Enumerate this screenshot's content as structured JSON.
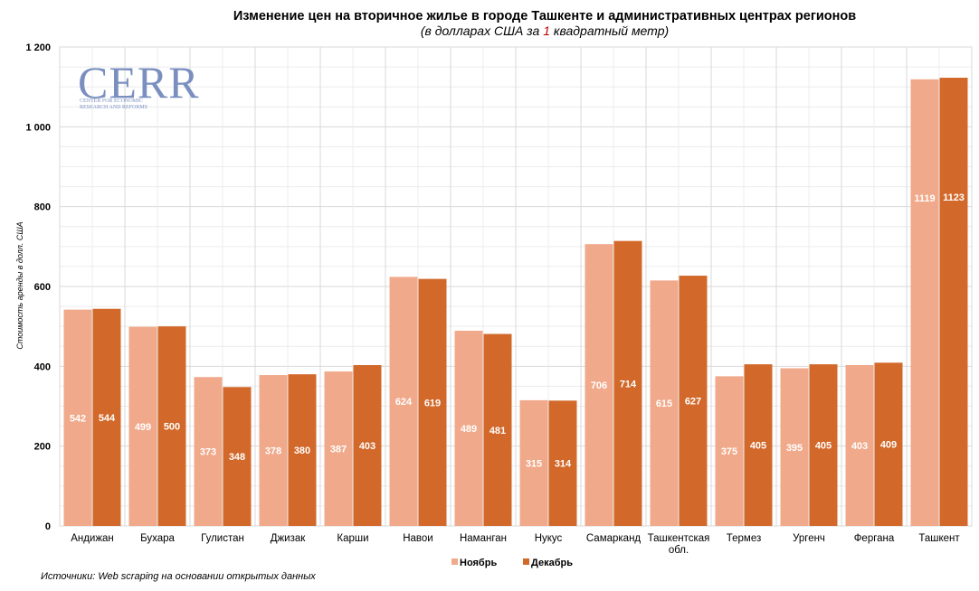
{
  "chart_data": {
    "type": "bar",
    "title": "Изменение цен на вторичное жилье в городе Ташкенте и административных центрах регионов",
    "subtitle": {
      "prefix": "(в долларах США за ",
      "highlight": "1",
      "suffix": " квадратный метр)"
    },
    "ylabel": "Стоимость аренды в долл. США",
    "xlabel": "",
    "ylim": [
      0,
      1200
    ],
    "yticks": [
      0,
      200,
      400,
      600,
      800,
      1000,
      1200
    ],
    "ytick_labels": [
      "0",
      "200",
      "400",
      "600",
      "800",
      "1 000",
      "1 200"
    ],
    "grid": true,
    "legend_position": "bottom-center",
    "categories": [
      [
        "Андижан"
      ],
      [
        "Бухара"
      ],
      [
        "Гулистан"
      ],
      [
        "Джизак"
      ],
      [
        "Карши"
      ],
      [
        "Навои"
      ],
      [
        "Наманган"
      ],
      [
        "Нукус"
      ],
      [
        "Самарканд"
      ],
      [
        "Ташкентская",
        "обл."
      ],
      [
        "Термез"
      ],
      [
        "Ургенч"
      ],
      [
        "Фергана"
      ],
      [
        "Ташкент"
      ]
    ],
    "series": [
      {
        "name": "Ноябрь",
        "color": "#f0a98a",
        "values": [
          542,
          499,
          373,
          378,
          387,
          624,
          489,
          315,
          706,
          615,
          375,
          395,
          403,
          1119
        ]
      },
      {
        "name": "Декабрь",
        "color": "#d2692a",
        "values": [
          544,
          500,
          348,
          380,
          403,
          619,
          481,
          314,
          714,
          627,
          405,
          405,
          409,
          1123
        ]
      }
    ]
  },
  "logo": {
    "text": "CERR",
    "line1": "CENTER FOR ECONOMIC",
    "line2": "RESEARCH AND REFORMS"
  },
  "source": "Источники: Web scraping на основании открытых данных",
  "colors": {
    "accent_red": "#c00000",
    "grid": "#d9d9d9",
    "logo": "#7a8fc0"
  }
}
